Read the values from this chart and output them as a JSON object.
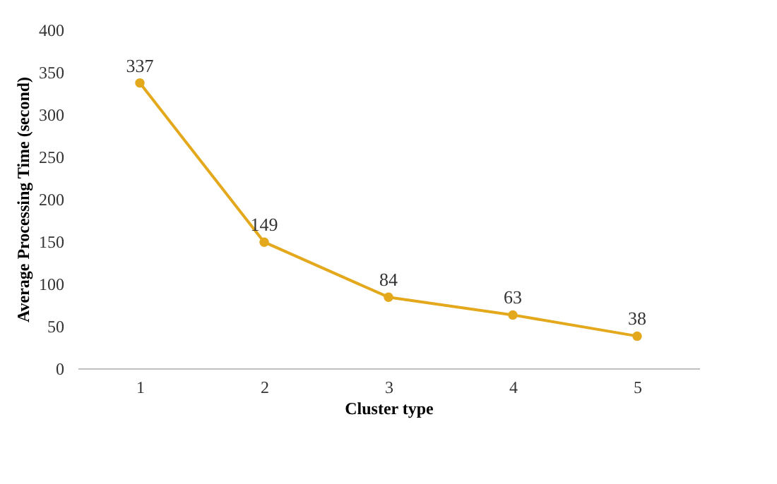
{
  "chart_data": {
    "type": "line",
    "xlabel": "Cluster type",
    "ylabel": "Average  Processing Time (second)",
    "categories": [
      "1",
      "2",
      "3",
      "4",
      "5"
    ],
    "series": [
      {
        "color": "#e3a81b",
        "values": [
          337,
          149,
          84,
          63,
          38
        ]
      }
    ],
    "ylim": [
      0,
      400
    ],
    "yticks": [
      0,
      50,
      100,
      150,
      200,
      250,
      300,
      350,
      400
    ],
    "data_labels": true,
    "marker": "circle",
    "line_style": "solid",
    "grid": false,
    "legend": false
  }
}
